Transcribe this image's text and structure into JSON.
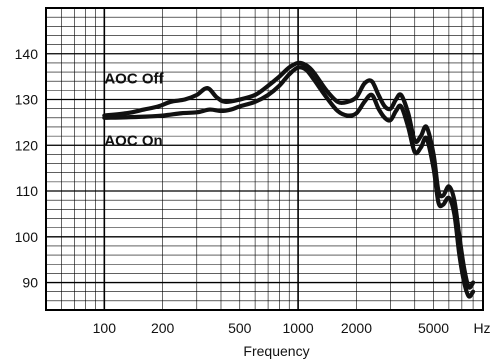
{
  "chart_data": {
    "type": "line",
    "xlabel": "Frequency",
    "ylabel": "",
    "x_scale": "log",
    "x_unit_label": "Hz",
    "xlim": [
      50,
      9000
    ],
    "ylim": [
      84,
      150
    ],
    "grid": true,
    "x_ticks": [
      100,
      200,
      500,
      1000,
      2000,
      5000
    ],
    "x_tick_labels": [
      "100",
      "200",
      "500",
      "1000",
      "2000",
      "5000"
    ],
    "y_ticks": [
      90,
      100,
      110,
      120,
      130,
      140
    ],
    "y_tick_labels": [
      "90",
      "100",
      "110",
      "120",
      "130",
      "140"
    ],
    "series": [
      {
        "name": "AOC Off",
        "x": [
          100,
          130,
          160,
          190,
          220,
          260,
          300,
          340,
          380,
          420,
          500,
          600,
          700,
          800,
          900,
          1000,
          1100,
          1200,
          1400,
          1600,
          1800,
          2000,
          2200,
          2400,
          2600,
          2800,
          3000,
          3200,
          3400,
          3700,
          4000,
          4300,
          4600,
          5000,
          5300,
          5600,
          6000,
          6400,
          6800,
          7200,
          7600,
          8000
        ],
        "values": [
          126.5,
          127.0,
          127.8,
          128.5,
          129.5,
          130.0,
          131.0,
          132.5,
          130.5,
          129.5,
          130.0,
          131.0,
          133.0,
          135.0,
          137.0,
          138.0,
          137.5,
          136.0,
          132.0,
          129.5,
          129.5,
          130.5,
          133.5,
          134.0,
          131.0,
          128.5,
          128.0,
          130.0,
          131.0,
          127.0,
          121.0,
          122.0,
          124.0,
          118.0,
          110.0,
          109.0,
          111.0,
          108.0,
          100.0,
          93.0,
          89.0,
          90.0
        ]
      },
      {
        "name": "AOC On",
        "x": [
          100,
          150,
          200,
          250,
          300,
          350,
          400,
          450,
          500,
          600,
          700,
          800,
          900,
          1000,
          1100,
          1200,
          1400,
          1600,
          1800,
          2000,
          2200,
          2400,
          2600,
          2800,
          3000,
          3200,
          3400,
          3700,
          4000,
          4300,
          4600,
          5000,
          5300,
          5600,
          6000,
          6400,
          6800,
          7200,
          7600,
          8000
        ],
        "values": [
          126.0,
          126.2,
          126.5,
          127.0,
          127.2,
          127.8,
          127.5,
          127.8,
          128.5,
          129.5,
          131.0,
          133.0,
          135.5,
          137.0,
          136.5,
          134.5,
          130.5,
          127.5,
          126.5,
          127.0,
          129.5,
          131.0,
          128.0,
          126.0,
          125.5,
          127.5,
          128.5,
          124.0,
          118.5,
          119.5,
          121.5,
          115.0,
          107.5,
          107.0,
          108.5,
          105.0,
          96.0,
          90.0,
          87.0,
          88.0
        ]
      }
    ]
  }
}
